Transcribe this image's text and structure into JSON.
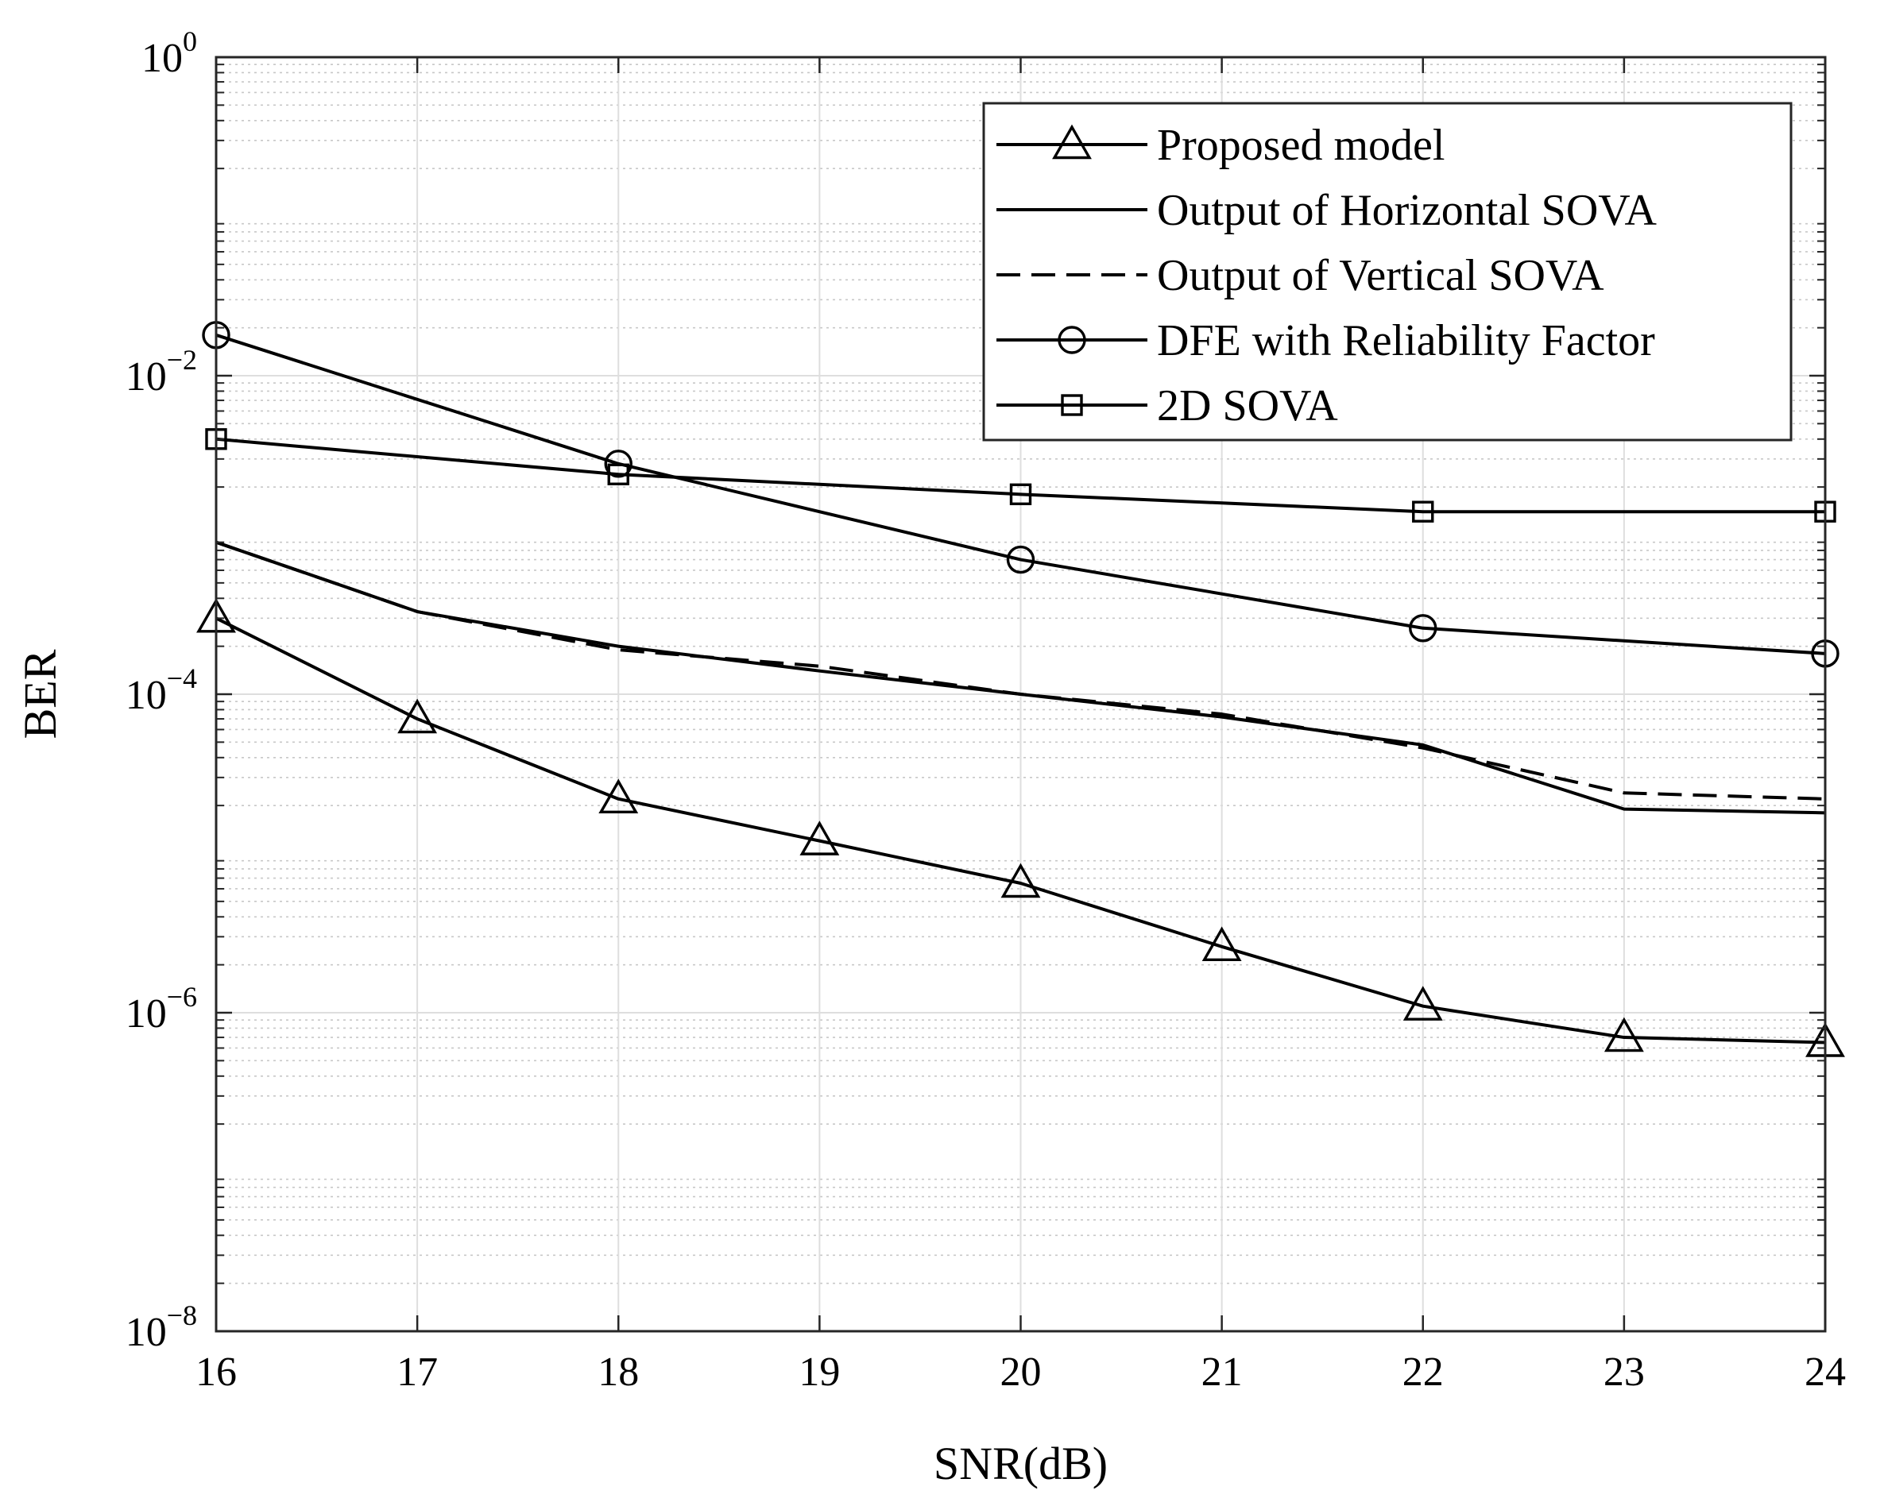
{
  "chart_data": {
    "type": "line",
    "title": "",
    "xlabel": "SNR(dB)",
    "ylabel": "BER",
    "xlim": [
      16,
      24
    ],
    "ylim": [
      1e-08,
      1
    ],
    "yscale": "log",
    "grid": true,
    "minor_grid": true,
    "legend_position": "top-right",
    "x_ticks": [
      16,
      17,
      18,
      19,
      20,
      21,
      22,
      23,
      24
    ],
    "x_tick_labels": [
      "16",
      "17",
      "18",
      "19",
      "20",
      "21",
      "22",
      "23",
      "24"
    ],
    "y_ticks": [
      {
        "exp": -8,
        "base": "10",
        "sup": "−8"
      },
      {
        "exp": -6,
        "base": "10",
        "sup": "−6"
      },
      {
        "exp": -4,
        "base": "10",
        "sup": "−4"
      },
      {
        "exp": -2,
        "base": "10",
        "sup": "−2"
      },
      {
        "exp": 0,
        "base": "10",
        "sup": "0"
      }
    ],
    "series": [
      {
        "name": "Proposed model",
        "style": "solid",
        "marker": "triangle",
        "x": [
          16,
          17,
          18,
          19,
          20,
          21,
          22,
          23,
          24
        ],
        "y": [
          0.0003,
          7e-05,
          2.2e-05,
          1.2e-05,
          6.5e-06,
          2.6e-06,
          1.1e-06,
          7e-07,
          6.5e-07
        ]
      },
      {
        "name": "Output of Horizontal SOVA",
        "style": "solid",
        "marker": "none",
        "x": [
          16,
          17,
          18,
          19,
          20,
          21,
          22,
          23,
          24
        ],
        "y": [
          0.0009,
          0.00033,
          0.0002,
          0.00014,
          0.0001,
          7.2e-05,
          4.8e-05,
          1.9e-05,
          1.8e-05
        ]
      },
      {
        "name": "Output of Vertical SOVA",
        "style": "dashed",
        "marker": "none",
        "x": [
          16,
          17,
          18,
          19,
          20,
          21,
          22,
          23,
          24
        ],
        "y": [
          0.0009,
          0.00033,
          0.00019,
          0.00015,
          0.0001,
          7.5e-05,
          4.6e-05,
          2.4e-05,
          2.2e-05
        ]
      },
      {
        "name": "DFE with Reliability Factor",
        "style": "solid",
        "marker": "circle",
        "x": [
          16,
          18,
          20,
          22,
          24
        ],
        "y": [
          0.018,
          0.0028,
          0.0007,
          0.00026,
          0.00018
        ]
      },
      {
        "name": "2D SOVA",
        "style": "solid",
        "marker": "square",
        "x": [
          16,
          18,
          20,
          22,
          24
        ],
        "y": [
          0.004,
          0.0024,
          0.0018,
          0.0014,
          0.0014
        ]
      }
    ]
  }
}
